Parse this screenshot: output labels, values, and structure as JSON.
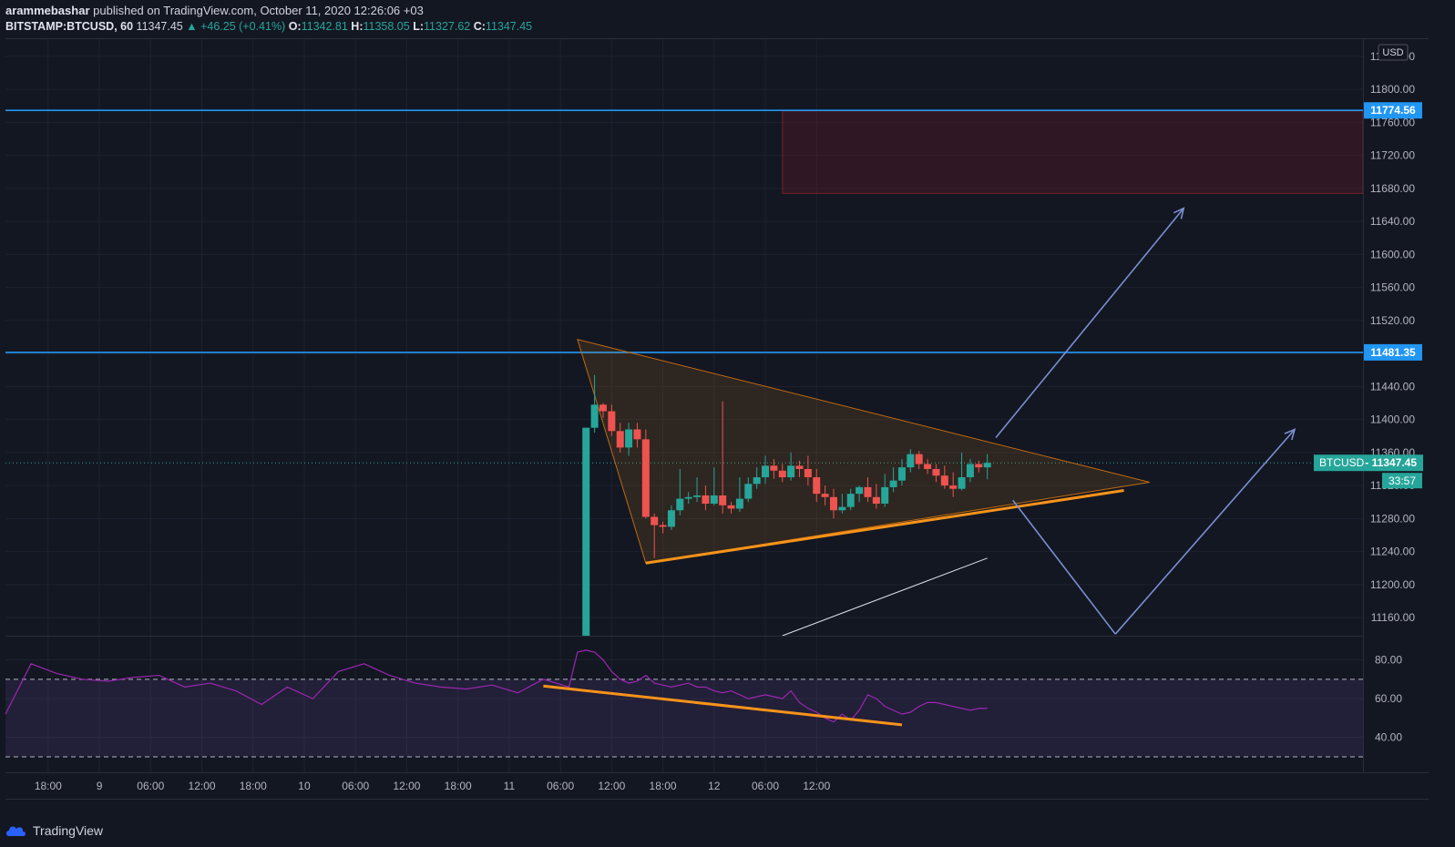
{
  "header": {
    "author": "arammebashar",
    "published": "published on TradingView.com, October 11, 2020 12:26:06 +03",
    "symbol": "BITSTAMP:BTCUSD, 60",
    "last": "11347.45",
    "change": "▲ +46.25 (+0.41%)",
    "open_label": "O:",
    "open": "11342.81",
    "high_label": "H:",
    "high": "11358.05",
    "low_label": "L:",
    "low": "11327.62",
    "close_label": "C:",
    "close": "11347.45"
  },
  "footer": {
    "brand": "TradingView"
  },
  "colors": {
    "bg": "#131722",
    "grid": "#1e2230",
    "up": "#26a69a",
    "down": "#ef5350",
    "level": "#2196f3",
    "triangle": "#f7931a",
    "rsi": "#9c27b0",
    "arrow": "#7b8fd1"
  },
  "chart_data": {
    "type": "candlestick",
    "currency": "USD",
    "price_axis": {
      "ticks": [
        "11840.00",
        "11800.00",
        "11760.00",
        "11720.00",
        "11680.00",
        "11640.00",
        "11600.00",
        "11560.00",
        "11520.00",
        "11480.00",
        "11440.00",
        "11400.00",
        "11360.00",
        "11320.00",
        "11280.00",
        "11240.00",
        "11200.00",
        "11160.00"
      ],
      "ylim": [
        11138,
        11862
      ]
    },
    "time_axis": {
      "ticks": [
        "18:00",
        "9",
        "06:00",
        "12:00",
        "18:00",
        "10",
        "06:00",
        "12:00",
        "18:00",
        "11",
        "06:00",
        "12:00",
        "18:00",
        "12",
        "06:00",
        "12:00"
      ],
      "xlim": [
        -5,
        154
      ]
    },
    "levels": [
      {
        "price": 11774.56,
        "label": "11774.56"
      },
      {
        "price": 11481.35,
        "label": "11481.35"
      }
    ],
    "last_price": {
      "price": 11347.45,
      "label": "BTCUSD",
      "value": "11347.45",
      "countdown": "33:57"
    },
    "resistance_zone": {
      "x": [
        86,
        159
      ],
      "price": [
        11674,
        11774
      ]
    },
    "candles": [
      [
        63,
        11100,
        11390,
        11100,
        11390
      ],
      [
        64,
        11390,
        11418,
        11384,
        11454
      ],
      [
        65,
        11418,
        11410,
        11402,
        11420
      ],
      [
        66,
        11410,
        11386,
        11380,
        11418
      ],
      [
        67,
        11386,
        11366,
        11360,
        11396
      ],
      [
        68,
        11366,
        11388,
        11356,
        11396
      ],
      [
        69,
        11388,
        11376,
        11366,
        11396
      ],
      [
        70,
        11376,
        11282,
        11280,
        11388
      ],
      [
        71,
        11282,
        11272,
        11232,
        11286
      ],
      [
        72,
        11272,
        11270,
        11262,
        11276
      ],
      [
        73,
        11270,
        11290,
        11266,
        11296
      ],
      [
        74,
        11290,
        11304,
        11284,
        11340
      ],
      [
        75,
        11304,
        11306,
        11298,
        11312
      ],
      [
        76,
        11306,
        11308,
        11300,
        11330
      ],
      [
        77,
        11308,
        11298,
        11290,
        11320
      ],
      [
        78,
        11298,
        11308,
        11296,
        11342
      ],
      [
        79,
        11308,
        11296,
        11286,
        11422
      ],
      [
        80,
        11296,
        11292,
        11286,
        11300
      ],
      [
        81,
        11292,
        11304,
        11288,
        11330
      ],
      [
        82,
        11304,
        11322,
        11300,
        11330
      ],
      [
        83,
        11322,
        11330,
        11316,
        11342
      ],
      [
        84,
        11330,
        11344,
        11322,
        11356
      ],
      [
        85,
        11344,
        11338,
        11328,
        11352
      ],
      [
        86,
        11338,
        11330,
        11324,
        11346
      ],
      [
        87,
        11330,
        11344,
        11326,
        11360
      ],
      [
        88,
        11344,
        11340,
        11330,
        11350
      ],
      [
        89,
        11340,
        11330,
        11320,
        11356
      ],
      [
        90,
        11330,
        11310,
        11300,
        11340
      ],
      [
        91,
        11310,
        11306,
        11296,
        11320
      ],
      [
        92,
        11306,
        11290,
        11280,
        11316
      ],
      [
        93,
        11290,
        11294,
        11286,
        11310
      ],
      [
        94,
        11294,
        11310,
        11290,
        11316
      ],
      [
        95,
        11310,
        11318,
        11300,
        11320
      ],
      [
        96,
        11318,
        11306,
        11300,
        11330
      ],
      [
        97,
        11306,
        11298,
        11292,
        11322
      ],
      [
        98,
        11298,
        11318,
        11294,
        11334
      ],
      [
        99,
        11318,
        11326,
        11312,
        11342
      ],
      [
        100,
        11326,
        11342,
        11320,
        11352
      ],
      [
        101,
        11342,
        11358,
        11336,
        11364
      ],
      [
        102,
        11358,
        11346,
        11340,
        11362
      ],
      [
        103,
        11346,
        11340,
        11334,
        11352
      ],
      [
        104,
        11340,
        11332,
        11324,
        11346
      ],
      [
        105,
        11332,
        11320,
        11316,
        11344
      ],
      [
        106,
        11320,
        11316,
        11306,
        11336
      ],
      [
        107,
        11316,
        11330,
        11314,
        11360
      ],
      [
        108,
        11330,
        11346,
        11324,
        11352
      ],
      [
        109,
        11346,
        11342,
        11336,
        11350
      ],
      [
        110,
        11342,
        11347.45,
        11327.62,
        11358.05
      ]
    ],
    "rsi": {
      "ticks": [
        "80.00",
        "60.00",
        "40.00"
      ],
      "ylim": [
        22,
        92
      ],
      "bands": [
        70,
        30
      ],
      "x": [
        -5,
        -2,
        1,
        4,
        7,
        10,
        13,
        16,
        19,
        22,
        25,
        28,
        31,
        34,
        37,
        40,
        43,
        46,
        49,
        52,
        55,
        58,
        61,
        62,
        63,
        64,
        65,
        66,
        67,
        68,
        69,
        70,
        71,
        72,
        73,
        74,
        75,
        76,
        77,
        78,
        79,
        80,
        81,
        82,
        83,
        84,
        85,
        86,
        87,
        88,
        89,
        90,
        91,
        92,
        93,
        94,
        95,
        96,
        97,
        98,
        99,
        100,
        101,
        102,
        103,
        104,
        105,
        106,
        107,
        108,
        109,
        110
      ],
      "values": [
        52,
        78,
        73,
        70,
        69,
        71,
        72,
        66,
        68,
        64,
        57,
        66,
        60,
        74,
        78,
        72,
        68,
        66,
        65,
        67,
        63,
        70,
        66,
        84,
        85,
        84,
        80,
        74,
        70,
        68,
        69,
        72,
        68,
        67,
        66,
        67,
        68,
        66,
        66,
        64,
        63,
        64,
        62,
        60,
        61,
        62,
        61,
        60,
        64,
        58,
        55,
        53,
        50,
        48,
        52,
        49,
        54,
        62,
        60,
        56,
        54,
        52,
        53,
        56,
        58,
        58,
        57,
        56,
        55,
        54,
        55,
        55
      ],
      "trend": [
        [
          58,
          66.5
        ],
        [
          100,
          46.5
        ]
      ]
    },
    "pattern": {
      "triangle": [
        [
          62,
          11497
        ],
        [
          70,
          11226
        ],
        [
          129,
          11324
        ]
      ],
      "support": [
        [
          70,
          11226
        ],
        [
          126,
          11314
        ]
      ],
      "white_line": [
        [
          86,
          11108
        ],
        [
          110,
          11232
        ]
      ],
      "arrows": [
        [
          [
            111,
            11378
          ],
          [
            133,
            11656
          ]
        ],
        [
          [
            113,
            11302
          ],
          [
            125,
            11140
          ]
        ],
        [
          [
            125,
            11140
          ],
          [
            146,
            11388
          ]
        ]
      ]
    }
  }
}
